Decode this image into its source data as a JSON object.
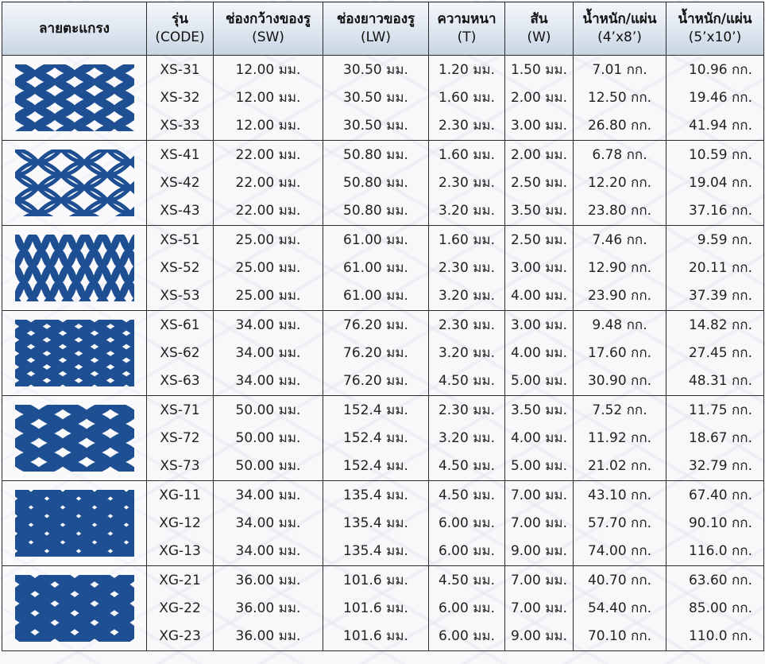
{
  "headers": [
    {
      "main": "ลายตะแกรง",
      "sub": ""
    },
    {
      "main": "รุ่น",
      "sub": "(CODE)"
    },
    {
      "main": "ช่องกว้างของรู",
      "sub": "(SW)"
    },
    {
      "main": "ช่องยาวของรู",
      "sub": "(LW)"
    },
    {
      "main": "ความหนา",
      "sub": "(T)"
    },
    {
      "main": "สัน",
      "sub": "(W)"
    },
    {
      "main": "น้ำหนัก/แผ่น",
      "sub": "(4’x8’)"
    },
    {
      "main": "น้ำหนัก/แผ่น",
      "sub": "(5’x10’)"
    }
  ],
  "groups": [
    {
      "pattern": "mesh-xs-30-icon",
      "rows": [
        {
          "code": "XS-31",
          "sw": "12.00 มม.",
          "lw": "30.50 มม.",
          "t": "1.20 มม.",
          "w": "1.50 มม.",
          "wt48": "7.01 กก.",
          "wt510": "10.96 กก."
        },
        {
          "code": "XS-32",
          "sw": "12.00 มม.",
          "lw": "30.50 มม.",
          "t": "1.60 มม.",
          "w": "2.00 มม.",
          "wt48": "12.50 กก.",
          "wt510": "19.46 กก."
        },
        {
          "code": "XS-33",
          "sw": "12.00 มม.",
          "lw": "30.50 มม.",
          "t": "2.30 มม.",
          "w": "3.00 มม.",
          "wt48": "26.80 กก.",
          "wt510": "41.94 กก."
        }
      ]
    },
    {
      "pattern": "mesh-xs-40-icon",
      "rows": [
        {
          "code": "XS-41",
          "sw": "22.00 มม.",
          "lw": "50.80 มม.",
          "t": "1.60 มม.",
          "w": "2.00 มม.",
          "wt48": "6.78 กก.",
          "wt510": "10.59 กก."
        },
        {
          "code": "XS-42",
          "sw": "22.00 มม.",
          "lw": "50.80 มม.",
          "t": "2.30 มม.",
          "w": "2.50 มม.",
          "wt48": "12.20 กก.",
          "wt510": "19.04 กก."
        },
        {
          "code": "XS-43",
          "sw": "22.00 มม.",
          "lw": "50.80 มม.",
          "t": "3.20 มม.",
          "w": "3.50 มม.",
          "wt48": "23.80 กก.",
          "wt510": "37.16 กก."
        }
      ]
    },
    {
      "pattern": "mesh-xs-50-icon",
      "rows": [
        {
          "code": "XS-51",
          "sw": "25.00 มม.",
          "lw": "61.00 มม.",
          "t": "1.60 มม.",
          "w": "2.50 มม.",
          "wt48": "7.46 กก.",
          "wt510": "9.59 กก."
        },
        {
          "code": "XS-52",
          "sw": "25.00 มม.",
          "lw": "61.00 มม.",
          "t": "2.30 มม.",
          "w": "3.00 มม.",
          "wt48": "12.90 กก.",
          "wt510": "20.11 กก."
        },
        {
          "code": "XS-53",
          "sw": "25.00 มม.",
          "lw": "61.00 มม.",
          "t": "3.20 มม.",
          "w": "4.00 มม.",
          "wt48": "23.90 กก.",
          "wt510": "37.39 กก."
        }
      ]
    },
    {
      "pattern": "mesh-xs-60-icon",
      "rows": [
        {
          "code": "XS-61",
          "sw": "34.00 มม.",
          "lw": "76.20 มม.",
          "t": "2.30 มม.",
          "w": "3.00 มม.",
          "wt48": "9.48 กก.",
          "wt510": "14.82 กก."
        },
        {
          "code": "XS-62",
          "sw": "34.00 มม.",
          "lw": "76.20 มม.",
          "t": "3.20 มม.",
          "w": "4.00 มม.",
          "wt48": "17.60 กก.",
          "wt510": "27.45 กก."
        },
        {
          "code": "XS-63",
          "sw": "34.00 มม.",
          "lw": "76.20 มม.",
          "t": "4.50 มม.",
          "w": "5.00 มม.",
          "wt48": "30.90 กก.",
          "wt510": "48.31 กก."
        }
      ]
    },
    {
      "pattern": "mesh-xs-70-icon",
      "rows": [
        {
          "code": "XS-71",
          "sw": "50.00 มม.",
          "lw": "152.4 มม.",
          "t": "2.30 มม.",
          "w": "3.50 มม.",
          "wt48": "7.52 กก.",
          "wt510": "11.75 กก."
        },
        {
          "code": "XS-72",
          "sw": "50.00 มม.",
          "lw": "152.4 มม.",
          "t": "3.20 มม.",
          "w": "4.00 มม.",
          "wt48": "11.92 กก.",
          "wt510": "18.67 กก."
        },
        {
          "code": "XS-73",
          "sw": "50.00 มม.",
          "lw": "152.4 มม.",
          "t": "4.50 มม.",
          "w": "5.00 มม.",
          "wt48": "21.02 กก.",
          "wt510": "32.79 กก."
        }
      ]
    },
    {
      "pattern": "mesh-xg-10-icon",
      "rows": [
        {
          "code": "XG-11",
          "sw": "34.00  มม.",
          "lw": "135.4 มม.",
          "t": "4.50 มม.",
          "w": "7.00 มม.",
          "wt48": "43.10 กก.",
          "wt510": "67.40 กก."
        },
        {
          "code": "XG-12",
          "sw": "34.00  มม.",
          "lw": "135.4 มม.",
          "t": "6.00 มม.",
          "w": "7.00 มม.",
          "wt48": "57.70 กก.",
          "wt510": "90.10 กก."
        },
        {
          "code": "XG-13",
          "sw": "34.00  มม.",
          "lw": "135.4 มม.",
          "t": "6.00 มม.",
          "w": "9.00 มม.",
          "wt48": "74.00 กก.",
          "wt510": "116.0 กก."
        }
      ]
    },
    {
      "pattern": "mesh-xg-20-icon",
      "rows": [
        {
          "code": "XG-21",
          "sw": "36.00 มม.",
          "lw": "101.6 มม.",
          "t": "4.50 มม.",
          "w": "7.00 มม.",
          "wt48": "40.70 กก.",
          "wt510": "63.60 กก."
        },
        {
          "code": "XG-22",
          "sw": "36.00 มม.",
          "lw": "101.6 มม.",
          "t": "6.00 มม.",
          "w": "7.00 มม.",
          "wt48": "54.40 กก.",
          "wt510": "85.00 กก."
        },
        {
          "code": "XG-23",
          "sw": "36.00 มม.",
          "lw": "101.6 มม.",
          "t": "6.00 มม.",
          "w": "9.00 มม.",
          "wt48": "70.10 กก.",
          "wt510": "110.0 กก."
        }
      ]
    }
  ],
  "colors": {
    "mesh": "#1f4f93",
    "header_bg": "#d6dfeb",
    "border": "#2b2b2b"
  }
}
